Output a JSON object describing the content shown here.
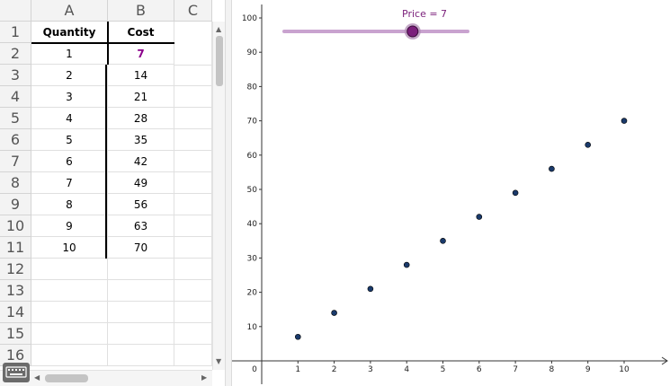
{
  "spreadsheet": {
    "columns": [
      "A",
      "B",
      "C"
    ],
    "row_numbers": [
      "1",
      "2",
      "3",
      "4",
      "5",
      "6",
      "7",
      "8",
      "9",
      "10",
      "11",
      "12",
      "13",
      "14",
      "15",
      "16"
    ],
    "headers": {
      "quantity": "Quantity",
      "cost": "Cost"
    },
    "rows": [
      {
        "quantity": "1",
        "cost": "7"
      },
      {
        "quantity": "2",
        "cost": "14"
      },
      {
        "quantity": "3",
        "cost": "21"
      },
      {
        "quantity": "4",
        "cost": "28"
      },
      {
        "quantity": "5",
        "cost": "35"
      },
      {
        "quantity": "6",
        "cost": "42"
      },
      {
        "quantity": "7",
        "cost": "49"
      },
      {
        "quantity": "8",
        "cost": "56"
      },
      {
        "quantity": "9",
        "cost": "63"
      },
      {
        "quantity": "10",
        "cost": "70"
      }
    ]
  },
  "slider": {
    "label": "Price = 7",
    "value": 7,
    "min": 0,
    "max": 10,
    "color": "#7b1e7b"
  },
  "chart_data": {
    "type": "scatter",
    "x": [
      1,
      2,
      3,
      4,
      5,
      6,
      7,
      8,
      9,
      10
    ],
    "y": [
      7,
      14,
      21,
      28,
      35,
      42,
      49,
      56,
      63,
      70
    ],
    "xlim": [
      0,
      10
    ],
    "ylim": [
      0,
      100
    ],
    "x_ticks": [
      "0",
      "1",
      "2",
      "3",
      "4",
      "5",
      "6",
      "7",
      "8",
      "9",
      "10"
    ],
    "y_ticks": [
      "10",
      "20",
      "30",
      "40",
      "50",
      "60",
      "70",
      "80",
      "90",
      "100"
    ],
    "point_color": "#1a3a6b",
    "grid": false
  }
}
